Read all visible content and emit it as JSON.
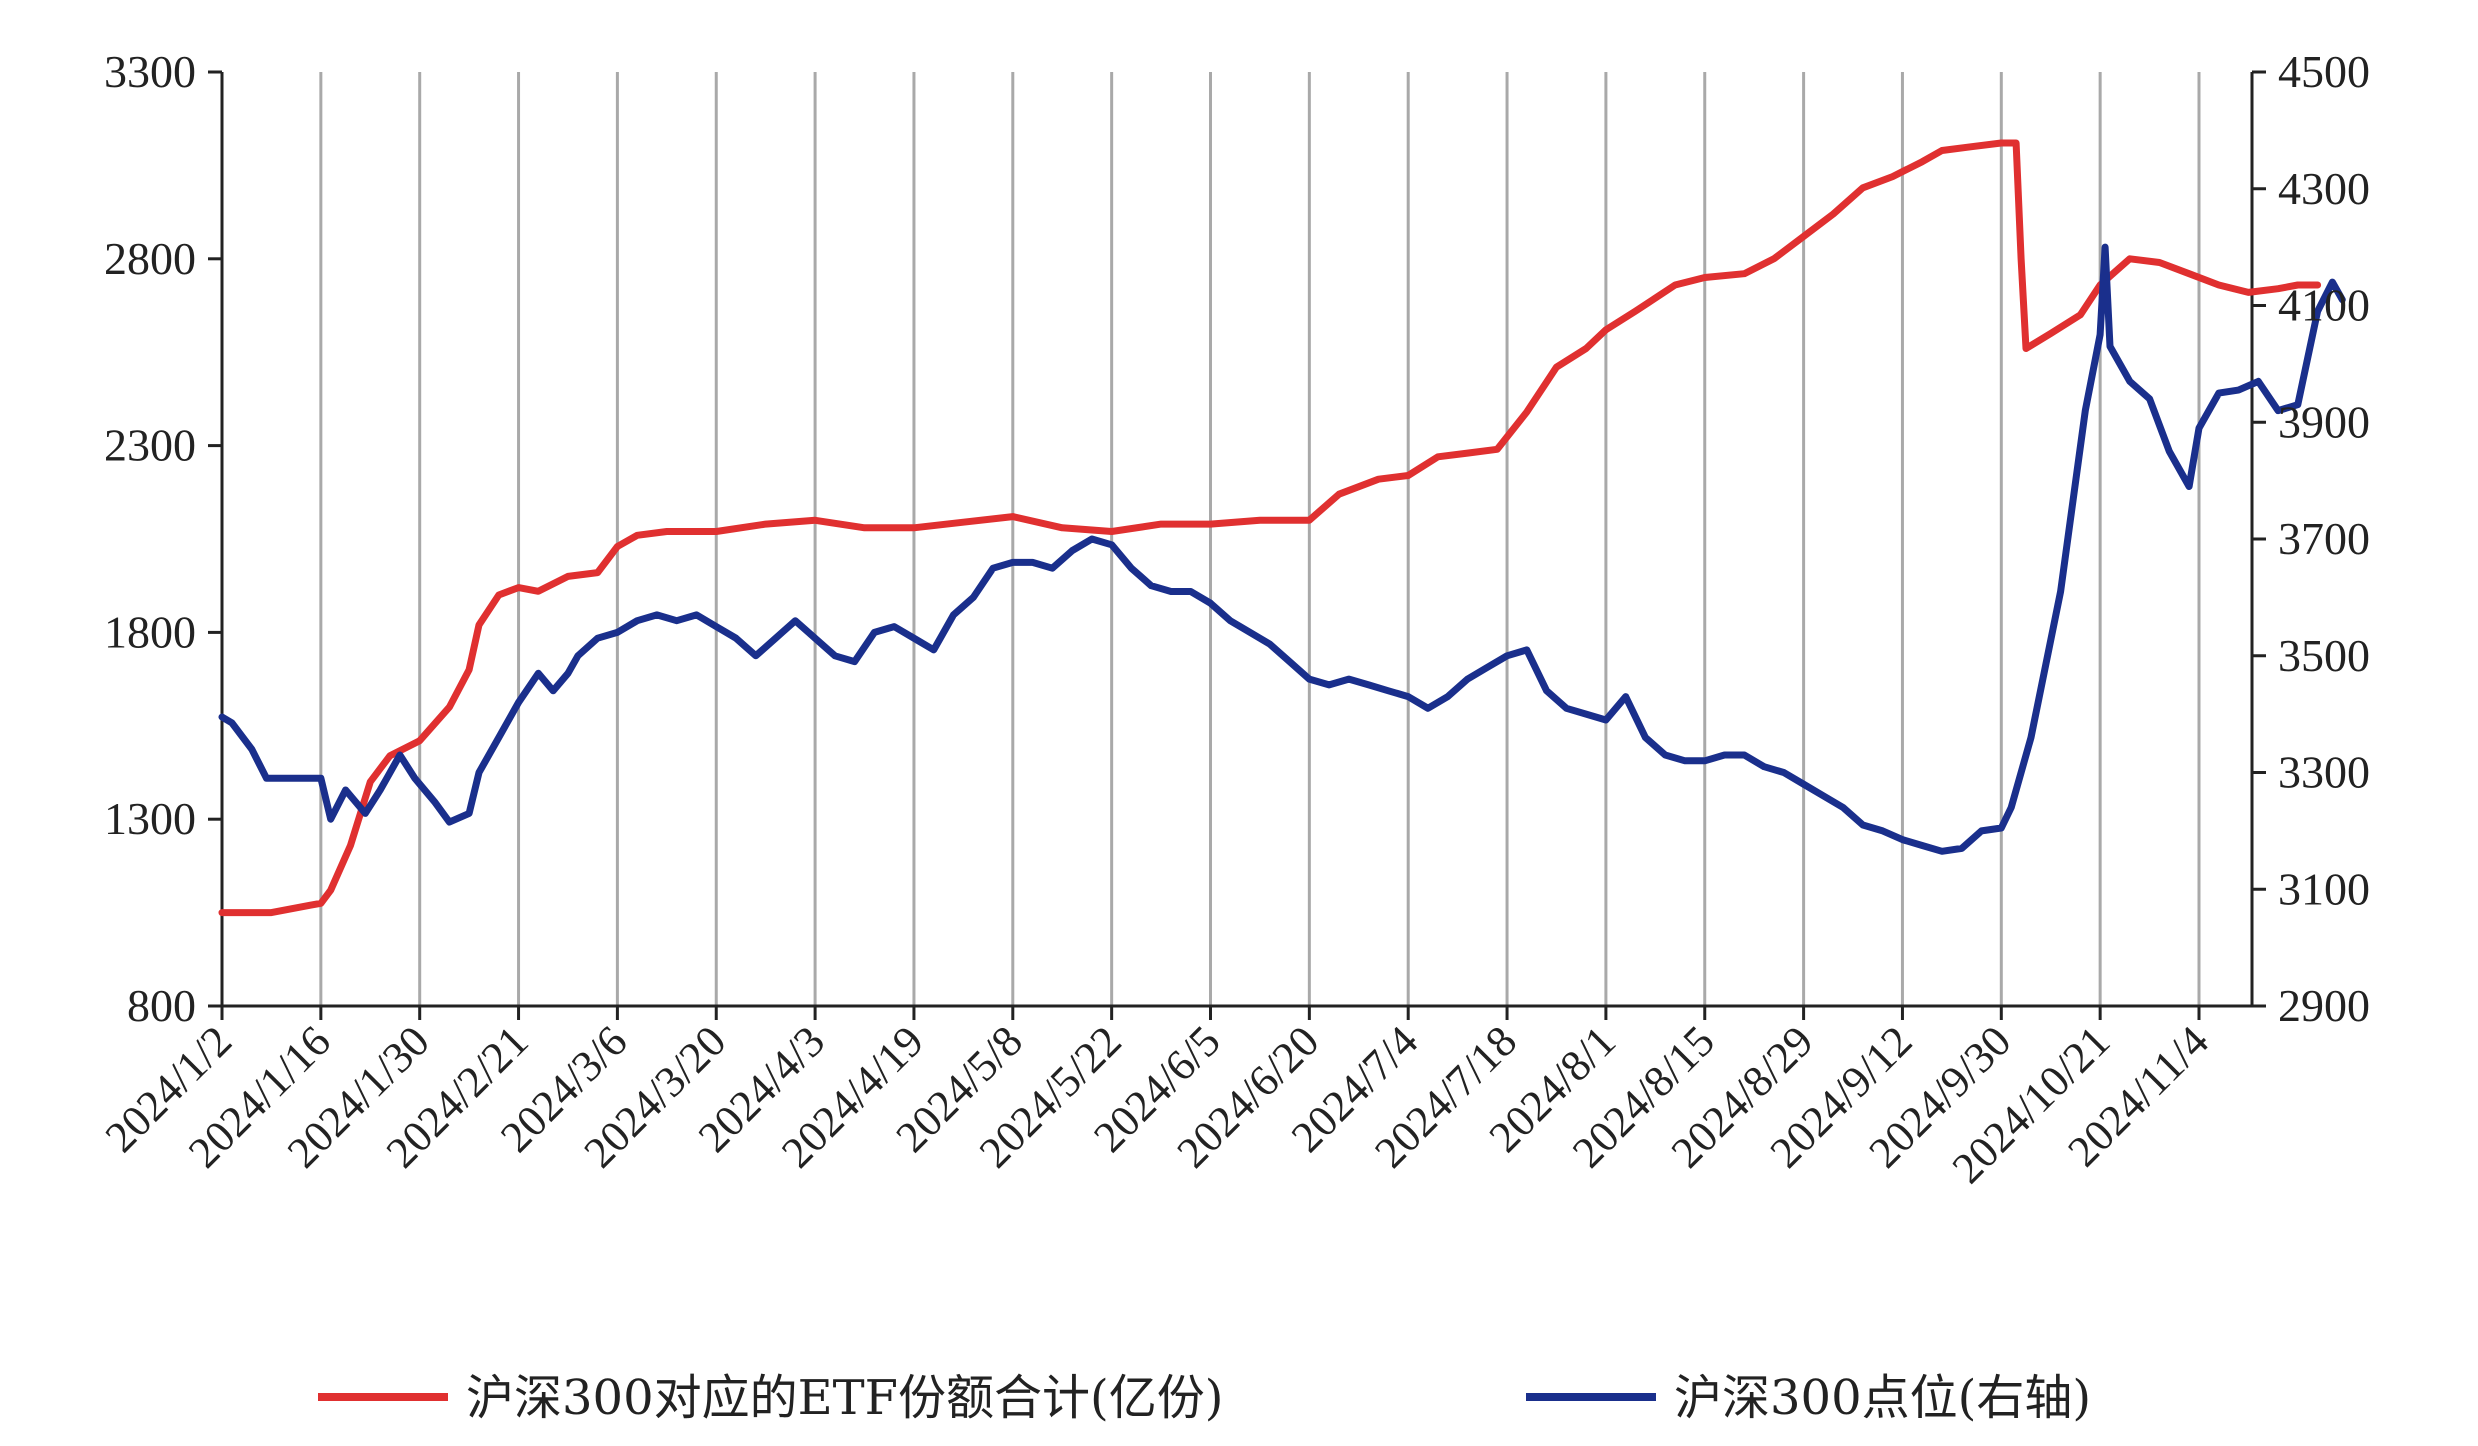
{
  "chart_data": {
    "type": "line",
    "title": "",
    "xlabel": "",
    "ylabel": "",
    "x_tick_labels": [
      "2024/1/2",
      "2024/1/16",
      "2024/1/30",
      "2024/2/21",
      "2024/3/6",
      "2024/3/20",
      "2024/4/3",
      "2024/4/19",
      "2024/5/8",
      "2024/5/22",
      "2024/6/5",
      "2024/6/20",
      "2024/7/4",
      "2024/7/18",
      "2024/8/1",
      "2024/8/15",
      "2024/8/29",
      "2024/9/12",
      "2024/9/30",
      "2024/10/21",
      "2024/11/4"
    ],
    "y_left": {
      "lim": [
        800,
        3300
      ],
      "ticks": [
        "800",
        "1300",
        "1800",
        "2300",
        "2800",
        "3300"
      ]
    },
    "y_right": {
      "lim": [
        2900,
        4500
      ],
      "ticks": [
        "2900",
        "3100",
        "3300",
        "3500",
        "3700",
        "3900",
        "4100",
        "4300",
        "4500"
      ]
    },
    "grid": "vertical",
    "legend_position": "bottom",
    "series": [
      {
        "name": "沪深300对应的ETF份额合计(亿份)",
        "axis": "left",
        "color": "#e03030",
        "points": [
          [
            0,
            1050
          ],
          [
            0.5,
            1050
          ],
          [
            0.9,
            1070
          ],
          [
            1.0,
            1075
          ],
          [
            1.1,
            1110
          ],
          [
            1.3,
            1230
          ],
          [
            1.5,
            1400
          ],
          [
            1.7,
            1470
          ],
          [
            2.0,
            1510
          ],
          [
            2.3,
            1600
          ],
          [
            2.5,
            1700
          ],
          [
            2.6,
            1820
          ],
          [
            2.8,
            1900
          ],
          [
            3.0,
            1920
          ],
          [
            3.2,
            1910
          ],
          [
            3.5,
            1950
          ],
          [
            3.8,
            1960
          ],
          [
            4.0,
            2030
          ],
          [
            4.2,
            2060
          ],
          [
            4.5,
            2070
          ],
          [
            5.0,
            2070
          ],
          [
            5.5,
            2090
          ],
          [
            6.0,
            2100
          ],
          [
            6.5,
            2080
          ],
          [
            7.0,
            2080
          ],
          [
            7.5,
            2095
          ],
          [
            8.0,
            2110
          ],
          [
            8.5,
            2080
          ],
          [
            9.0,
            2070
          ],
          [
            9.5,
            2090
          ],
          [
            10.0,
            2090
          ],
          [
            10.5,
            2100
          ],
          [
            11.0,
            2100
          ],
          [
            11.3,
            2170
          ],
          [
            11.7,
            2210
          ],
          [
            12.0,
            2220
          ],
          [
            12.3,
            2270
          ],
          [
            12.6,
            2280
          ],
          [
            12.9,
            2290
          ],
          [
            13.2,
            2390
          ],
          [
            13.5,
            2510
          ],
          [
            13.8,
            2560
          ],
          [
            14.0,
            2610
          ],
          [
            14.3,
            2660
          ],
          [
            14.7,
            2730
          ],
          [
            15.0,
            2750
          ],
          [
            15.4,
            2760
          ],
          [
            15.7,
            2800
          ],
          [
            16.0,
            2860
          ],
          [
            16.3,
            2920
          ],
          [
            16.6,
            2990
          ],
          [
            16.9,
            3020
          ],
          [
            17.2,
            3060
          ],
          [
            17.4,
            3090
          ],
          [
            17.7,
            3100
          ],
          [
            18.0,
            3110
          ],
          [
            18.15,
            3110
          ],
          [
            18.2,
            2800
          ],
          [
            18.25,
            2560
          ],
          [
            18.5,
            2600
          ],
          [
            18.8,
            2650
          ],
          [
            19.0,
            2730
          ],
          [
            19.3,
            2800
          ],
          [
            19.6,
            2790
          ],
          [
            19.9,
            2760
          ],
          [
            20.2,
            2730
          ],
          [
            20.5,
            2710
          ],
          [
            20.8,
            2720
          ],
          [
            21.0,
            2730
          ],
          [
            21.2,
            2730
          ]
        ]
      },
      {
        "name": "沪深300点位(右轴)",
        "axis": "right",
        "color": "#1a2f8c",
        "points": [
          [
            0,
            3395
          ],
          [
            0.1,
            3385
          ],
          [
            0.3,
            3340
          ],
          [
            0.45,
            3290
          ],
          [
            0.6,
            3290
          ],
          [
            0.8,
            3290
          ],
          [
            1.0,
            3290
          ],
          [
            1.1,
            3220
          ],
          [
            1.25,
            3270
          ],
          [
            1.45,
            3230
          ],
          [
            1.6,
            3270
          ],
          [
            1.8,
            3330
          ],
          [
            1.95,
            3290
          ],
          [
            2.15,
            3250
          ],
          [
            2.3,
            3215
          ],
          [
            2.5,
            3230
          ],
          [
            2.6,
            3300
          ],
          [
            2.8,
            3360
          ],
          [
            3.0,
            3420
          ],
          [
            3.2,
            3470
          ],
          [
            3.35,
            3440
          ],
          [
            3.5,
            3470
          ],
          [
            3.6,
            3500
          ],
          [
            3.8,
            3530
          ],
          [
            4.0,
            3540
          ],
          [
            4.2,
            3560
          ],
          [
            4.4,
            3570
          ],
          [
            4.6,
            3560
          ],
          [
            4.8,
            3570
          ],
          [
            5.0,
            3550
          ],
          [
            5.2,
            3530
          ],
          [
            5.4,
            3500
          ],
          [
            5.6,
            3530
          ],
          [
            5.8,
            3560
          ],
          [
            6.0,
            3530
          ],
          [
            6.2,
            3500
          ],
          [
            6.4,
            3490
          ],
          [
            6.6,
            3540
          ],
          [
            6.8,
            3550
          ],
          [
            7.0,
            3530
          ],
          [
            7.2,
            3510
          ],
          [
            7.4,
            3570
          ],
          [
            7.6,
            3600
          ],
          [
            7.8,
            3650
          ],
          [
            8.0,
            3660
          ],
          [
            8.2,
            3660
          ],
          [
            8.4,
            3650
          ],
          [
            8.6,
            3680
          ],
          [
            8.8,
            3700
          ],
          [
            9.0,
            3690
          ],
          [
            9.2,
            3650
          ],
          [
            9.4,
            3620
          ],
          [
            9.6,
            3610
          ],
          [
            9.8,
            3610
          ],
          [
            10.0,
            3590
          ],
          [
            10.2,
            3560
          ],
          [
            10.4,
            3540
          ],
          [
            10.6,
            3520
          ],
          [
            10.8,
            3490
          ],
          [
            11.0,
            3460
          ],
          [
            11.2,
            3450
          ],
          [
            11.4,
            3460
          ],
          [
            11.6,
            3450
          ],
          [
            11.8,
            3440
          ],
          [
            12.0,
            3430
          ],
          [
            12.2,
            3410
          ],
          [
            12.4,
            3430
          ],
          [
            12.6,
            3460
          ],
          [
            12.8,
            3480
          ],
          [
            13.0,
            3500
          ],
          [
            13.2,
            3510
          ],
          [
            13.4,
            3440
          ],
          [
            13.6,
            3410
          ],
          [
            13.8,
            3400
          ],
          [
            14.0,
            3390
          ],
          [
            14.2,
            3430
          ],
          [
            14.4,
            3360
          ],
          [
            14.6,
            3330
          ],
          [
            14.8,
            3320
          ],
          [
            15.0,
            3320
          ],
          [
            15.2,
            3330
          ],
          [
            15.4,
            3330
          ],
          [
            15.6,
            3310
          ],
          [
            15.8,
            3300
          ],
          [
            16.0,
            3280
          ],
          [
            16.2,
            3260
          ],
          [
            16.4,
            3240
          ],
          [
            16.6,
            3210
          ],
          [
            16.8,
            3200
          ],
          [
            17.0,
            3185
          ],
          [
            17.2,
            3175
          ],
          [
            17.4,
            3165
          ],
          [
            17.6,
            3170
          ],
          [
            17.8,
            3200
          ],
          [
            18.0,
            3205
          ],
          [
            18.1,
            3240
          ],
          [
            18.3,
            3360
          ],
          [
            18.6,
            3610
          ],
          [
            18.85,
            3920
          ],
          [
            19.0,
            4050
          ],
          [
            19.05,
            4200
          ],
          [
            19.1,
            4030
          ],
          [
            19.3,
            3970
          ],
          [
            19.5,
            3940
          ],
          [
            19.7,
            3850
          ],
          [
            19.9,
            3790
          ],
          [
            20.0,
            3890
          ],
          [
            20.2,
            3950
          ],
          [
            20.4,
            3955
          ],
          [
            20.6,
            3970
          ],
          [
            20.8,
            3920
          ],
          [
            21.0,
            3930
          ],
          [
            21.2,
            4090
          ],
          [
            21.35,
            4140
          ],
          [
            21.45,
            4110
          ]
        ]
      }
    ]
  }
}
